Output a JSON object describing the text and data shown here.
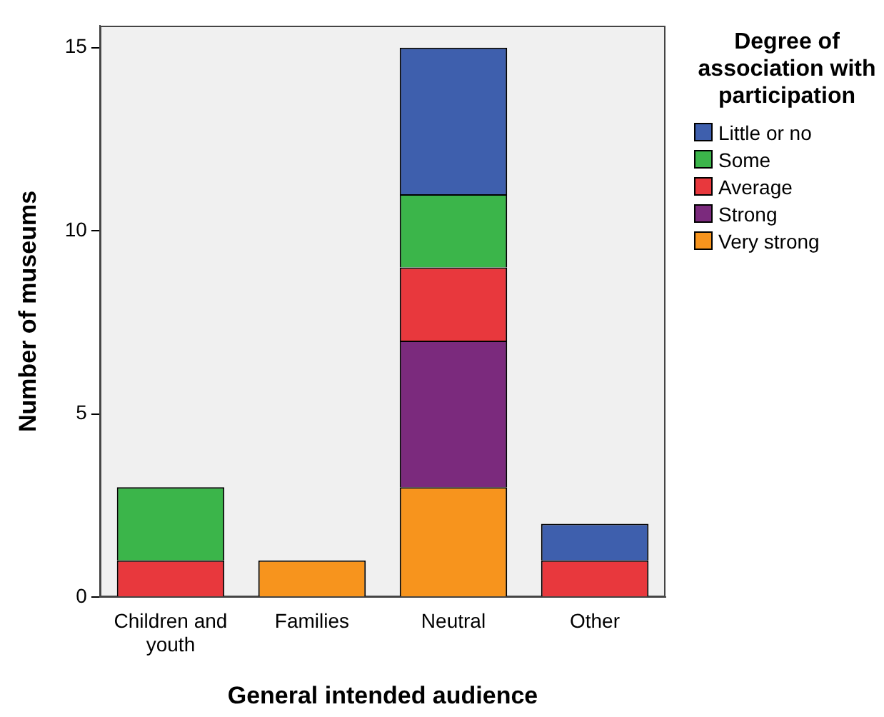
{
  "chart_data": {
    "type": "bar",
    "stacked": true,
    "xlabel": "General intended audience",
    "ylabel": "Number of museums",
    "legend_title": "Degree of association with participation",
    "legend": "right",
    "grid": false,
    "categories": [
      "Children and youth",
      "Families",
      "Neutral",
      "Other"
    ],
    "ylim": [
      0,
      15.6
    ],
    "yticks": [
      0,
      5,
      10,
      15
    ],
    "series": [
      {
        "name": "Very strong",
        "color": "#f7941d",
        "values": [
          0,
          1,
          3,
          0
        ]
      },
      {
        "name": "Strong",
        "color": "#7b2a7d",
        "values": [
          0,
          0,
          4,
          0
        ]
      },
      {
        "name": "Average",
        "color": "#e8383d",
        "values": [
          1,
          0,
          2,
          1
        ]
      },
      {
        "name": "Some",
        "color": "#3bb54a",
        "values": [
          2,
          0,
          2,
          0
        ]
      },
      {
        "name": "Little or no",
        "color": "#3e5fad",
        "values": [
          0,
          0,
          4,
          1
        ]
      }
    ]
  }
}
